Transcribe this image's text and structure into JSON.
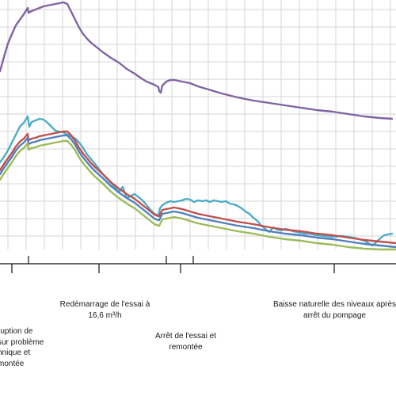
{
  "chart_data": {
    "type": "line",
    "x_range": [
      0,
      500
    ],
    "y_range": [
      0,
      315
    ],
    "grid": true,
    "legend": "none",
    "series": [
      {
        "color": "#8064A2",
        "x": [
          0,
          5,
          10,
          15,
          20,
          25,
          30,
          35,
          36,
          40,
          45,
          50,
          55,
          60,
          65,
          70,
          75,
          80,
          85,
          90,
          95,
          100,
          105,
          110,
          115,
          120,
          130,
          140,
          150,
          160,
          170,
          180,
          185,
          190,
          195,
          200,
          201,
          203,
          205,
          210,
          215,
          220,
          225,
          230,
          235,
          240,
          245,
          250,
          260,
          270,
          280,
          300,
          320,
          340,
          360,
          380,
          400,
          420,
          440,
          460,
          480,
          495
        ],
        "y": [
          225,
          243,
          260,
          272,
          283,
          290,
          297,
          305,
          299,
          301,
          303,
          305,
          307,
          308,
          309,
          310,
          311,
          312,
          310,
          300,
          290,
          280,
          272,
          266,
          261,
          257,
          249,
          242,
          236,
          228,
          222,
          215,
          212,
          210,
          208,
          205,
          200,
          198,
          207,
          212,
          214,
          214,
          213,
          212,
          211,
          210,
          208,
          206,
          203,
          200,
          197,
          192,
          188,
          185,
          182,
          179,
          176,
          174,
          171,
          168,
          166,
          165
        ]
      },
      {
        "color": "#4BACC6",
        "x": [
          0,
          5,
          10,
          15,
          20,
          25,
          30,
          35,
          37,
          40,
          45,
          50,
          55,
          60,
          65,
          70,
          75,
          80,
          85,
          90,
          95,
          100,
          105,
          110,
          120,
          130,
          140,
          150,
          155,
          160,
          170,
          180,
          190,
          195,
          200,
          202,
          205,
          210,
          215,
          220,
          225,
          230,
          235,
          240,
          245,
          250,
          255,
          260,
          265,
          270,
          275,
          280,
          285,
          290,
          295,
          300,
          305,
          310,
          315,
          320,
          325,
          330,
          335,
          340,
          345,
          350,
          355,
          360,
          365,
          370,
          375,
          380,
          385,
          390,
          395,
          400,
          410,
          420,
          430,
          440,
          450,
          460,
          465,
          470,
          475,
          480,
          485,
          490,
          495
        ],
        "y": [
          110,
          117,
          125,
          135,
          145,
          155,
          160,
          168,
          155,
          161,
          163,
          165,
          164,
          160,
          155,
          150,
          149,
          148,
          145,
          143,
          140,
          135,
          128,
          120,
          108,
          95,
          84,
          73,
          79,
          65,
          70,
          62,
          50,
          45,
          43,
          52,
          56,
          59,
          61,
          60,
          61,
          62,
          64,
          63,
          60,
          62,
          61,
          62,
          60,
          62,
          61,
          60,
          61,
          58,
          57,
          55,
          52,
          48,
          45,
          40,
          36,
          30,
          26,
          22,
          28,
          25,
          24,
          26,
          25,
          23,
          22,
          21,
          20,
          20,
          19,
          18,
          17,
          16,
          17,
          16,
          14,
          11,
          8,
          5,
          9,
          14,
          18,
          19,
          20
        ]
      },
      {
        "color": "#C0504D",
        "x": [
          0,
          5,
          10,
          15,
          20,
          25,
          30,
          35,
          36,
          40,
          45,
          50,
          55,
          60,
          65,
          70,
          75,
          80,
          85,
          90,
          95,
          100,
          105,
          110,
          115,
          120,
          130,
          140,
          150,
          160,
          170,
          180,
          185,
          190,
          195,
          200,
          201,
          205,
          210,
          215,
          220,
          230,
          240,
          250,
          260,
          270,
          280,
          300,
          320,
          340,
          360,
          380,
          400,
          420,
          440,
          460,
          480,
          500
        ],
        "y": [
          100,
          108,
          115,
          122,
          130,
          136,
          140,
          146,
          138,
          140,
          141,
          143,
          144,
          145,
          146,
          147,
          148,
          149,
          149,
          144,
          137,
          128,
          121,
          115,
          109,
          104,
          95,
          85,
          77,
          70,
          64,
          56,
          52,
          48,
          44,
          42,
          42,
          50,
          51,
          52,
          53,
          51,
          48,
          45,
          43,
          41,
          39,
          35,
          32,
          28,
          25,
          23,
          20,
          18,
          15,
          12,
          10,
          8
        ]
      },
      {
        "color": "#4F81BD",
        "x": [
          0,
          5,
          10,
          15,
          20,
          25,
          30,
          35,
          36,
          40,
          45,
          50,
          55,
          60,
          65,
          70,
          75,
          80,
          85,
          90,
          95,
          100,
          105,
          110,
          115,
          120,
          130,
          140,
          150,
          160,
          170,
          180,
          185,
          190,
          195,
          200,
          201,
          205,
          210,
          215,
          220,
          230,
          240,
          250,
          260,
          270,
          280,
          300,
          320,
          340,
          360,
          380,
          400,
          420,
          440,
          460,
          480,
          500
        ],
        "y": [
          95,
          103,
          110,
          117,
          125,
          131,
          135,
          141,
          133,
          135,
          136,
          138,
          139,
          140,
          141,
          142,
          143,
          144,
          144,
          139,
          132,
          123,
          116,
          110,
          104,
          99,
          90,
          80,
          72,
          65,
          59,
          51,
          47,
          43,
          39,
          37,
          37,
          45,
          46,
          47,
          48,
          46,
          43,
          40,
          38,
          36,
          34,
          30,
          27,
          23,
          20,
          18,
          15,
          13,
          10,
          7,
          5,
          3
        ]
      },
      {
        "color": "#9BBB59",
        "x": [
          0,
          5,
          10,
          15,
          20,
          25,
          30,
          35,
          36,
          40,
          45,
          50,
          55,
          60,
          65,
          70,
          75,
          80,
          85,
          90,
          95,
          100,
          105,
          110,
          115,
          120,
          130,
          140,
          150,
          160,
          170,
          180,
          185,
          190,
          195,
          200,
          201,
          205,
          210,
          215,
          220,
          230,
          240,
          250,
          260,
          270,
          280,
          300,
          320,
          340,
          360,
          380,
          400,
          420,
          440,
          460,
          480,
          500
        ],
        "y": [
          88,
          96,
          103,
          110,
          118,
          124,
          128,
          134,
          126,
          128,
          129,
          131,
          132,
          133,
          134,
          135,
          136,
          137,
          137,
          132,
          125,
          116,
          109,
          103,
          97,
          92,
          83,
          73,
          65,
          58,
          52,
          44,
          40,
          36,
          32,
          30,
          30,
          38,
          39,
          40,
          41,
          39,
          36,
          33,
          31,
          29,
          27,
          23,
          20,
          16,
          13,
          11,
          8,
          6,
          3,
          1,
          0,
          0
        ]
      }
    ]
  },
  "timeline": {
    "event_markers": [
      {
        "x": 36,
        "label": ""
      },
      {
        "x": 210,
        "label": ""
      },
      {
        "x": 244,
        "label": ""
      }
    ],
    "annotations": [
      {
        "x_center": 130,
        "text": "Redémarrage de l'essai à\n16,6 m³/h"
      },
      {
        "x_center": 36,
        "text": "ruption de\nsur problème\nhnique et\nmontée"
      },
      {
        "x_center": 234,
        "text": "Arrêt de l'essai et\nremontée"
      },
      {
        "x_center": 420,
        "text": "Baisse naturelle des niveaux après\narrêt du pompage"
      }
    ]
  }
}
